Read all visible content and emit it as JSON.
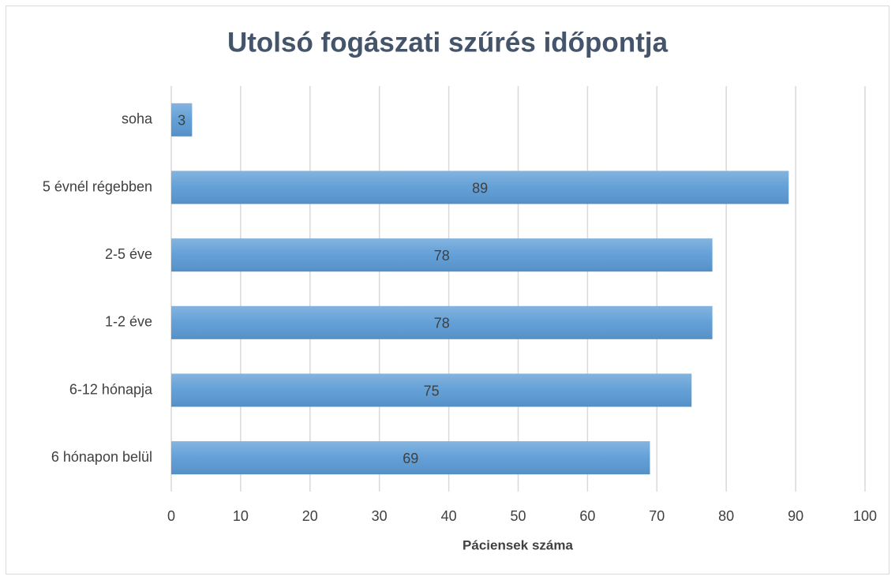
{
  "chart_data": {
    "type": "barh",
    "title": "Utolsó fogászati szűrés időpontja",
    "x_label": "Páciensek száma",
    "categories": [
      "6 hónapon belül",
      "6-12 hónapja",
      "1-2 éve",
      "2-5 éve",
      "5 évnél régebben",
      "soha"
    ],
    "values": [
      69,
      75,
      78,
      78,
      89,
      3
    ],
    "color": "#5b9bd5",
    "xlim": [
      0,
      100
    ],
    "xticks": [
      0,
      10,
      20,
      30,
      40,
      50,
      60,
      70,
      80,
      90,
      100
    ],
    "grid": true
  }
}
